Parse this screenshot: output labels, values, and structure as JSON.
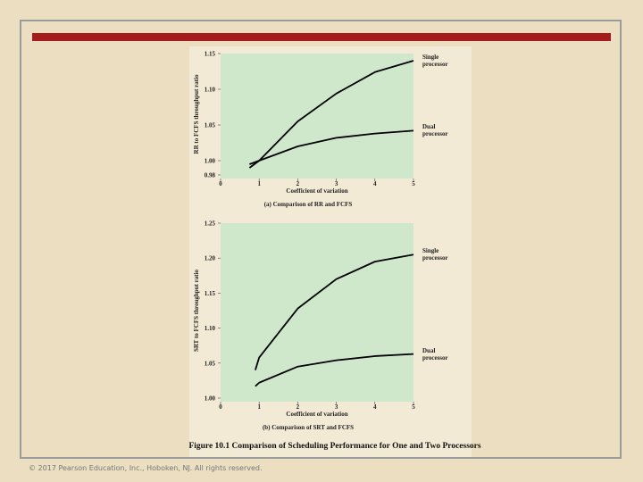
{
  "chart_data": [
    {
      "type": "line",
      "ylabel": "RR to FCFS throughput ratio",
      "xlabel": "Coefficient of variation",
      "subtitle": "(a) Comparison of RR and FCFS",
      "x": [
        0.75,
        1,
        2,
        3,
        4,
        5
      ],
      "series": [
        {
          "name": "Single processor",
          "color": "#000000",
          "values": [
            0.99,
            1.0,
            1.055,
            1.094,
            1.124,
            1.14
          ]
        },
        {
          "name": "Dual processor",
          "color": "#000000",
          "values": [
            0.995,
            1.0,
            1.02,
            1.032,
            1.038,
            1.042
          ]
        }
      ],
      "xlim": [
        0,
        5
      ],
      "xticks": [
        0,
        1,
        2,
        3,
        4,
        5
      ],
      "ylim": [
        0.98,
        1.15
      ],
      "yticks": [
        0.98,
        {
          "value": 1,
          "label": "1.00"
        },
        1.05,
        {
          "value": 1.1,
          "label": "1.10"
        },
        1.15
      ]
    },
    {
      "type": "line",
      "ylabel": "SRT to FCFS throughput ratio",
      "xlabel": "Coefficient of variation",
      "subtitle": "(b) Comparison of SRT and FCFS",
      "x": [
        0.9,
        1,
        2,
        3,
        4,
        5
      ],
      "series": [
        {
          "name": "Single processor",
          "color": "#000000",
          "values": [
            1.04,
            1.058,
            1.128,
            1.17,
            1.195,
            1.205
          ]
        },
        {
          "name": "Dual processor",
          "color": "#000000",
          "values": [
            1.017,
            1.022,
            1.045,
            1.054,
            1.06,
            1.063
          ]
        }
      ],
      "xlim": [
        0,
        5
      ],
      "xticks": [
        0,
        1,
        2,
        3,
        4,
        5
      ],
      "ylim": [
        1.0,
        1.25
      ],
      "yticks": [
        {
          "value": 1,
          "label": "1.00"
        },
        1.05,
        {
          "value": 1.1,
          "label": "1.10"
        },
        1.15,
        {
          "value": 1.2,
          "label": "1.20"
        },
        1.25
      ]
    }
  ],
  "caption": "Figure 10.1 Comparison of Scheduling Performance for One and Two Processors",
  "footer": "© 2017 Pearson Education, Inc., Hoboken, NJ. All rights reserved."
}
